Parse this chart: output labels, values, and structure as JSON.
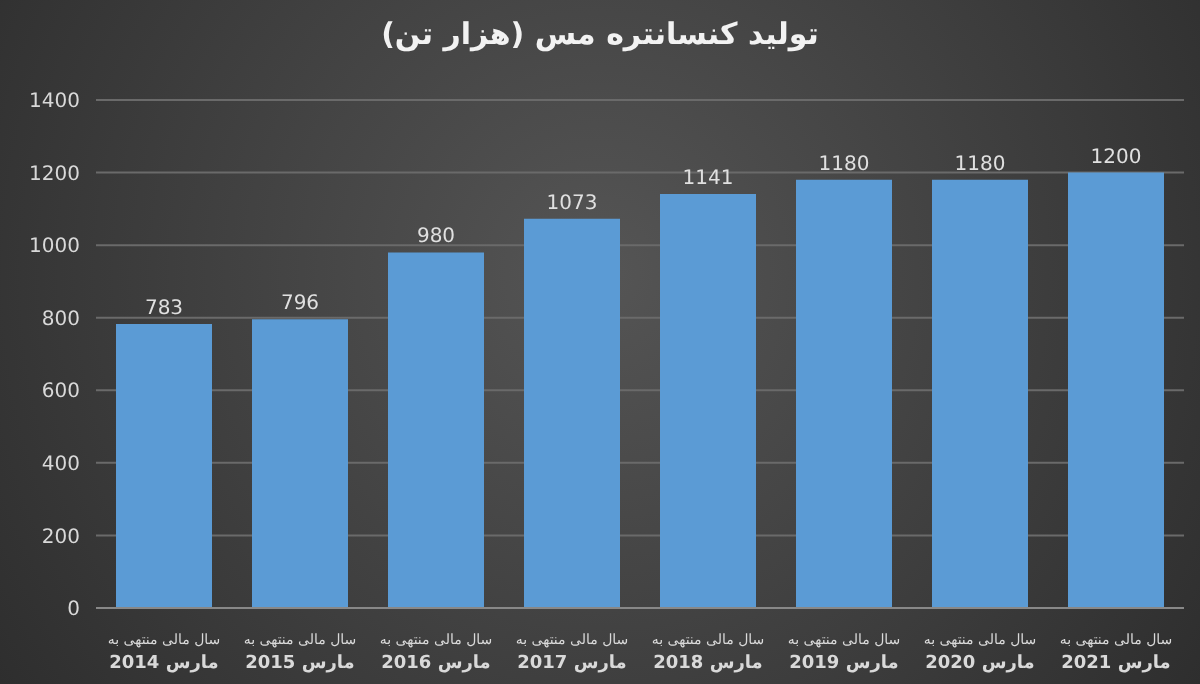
{
  "chart_data": {
    "type": "bar",
    "title": "تولید کنسانتره مس (هزار تن)",
    "categories": [
      "سال مالی منتهی به مارس 2014",
      "سال مالی منتهی به مارس 2015",
      "سال مالی منتهی به مارس 2016",
      "سال مالی منتهی به مارس 2017",
      "سال مالی منتهی به مارس 2018",
      "سال مالی منتهی به مارس 2019",
      "سال مالی منتهی به مارس 2020",
      "سال مالی منتهی به مارس 2021"
    ],
    "values": [
      783,
      796,
      980,
      1073,
      1141,
      1180,
      1180,
      1200
    ],
    "color": "#5b9bd5",
    "ylim": [
      0,
      1400
    ],
    "yticks": [
      0,
      200,
      400,
      600,
      800,
      1000,
      1200,
      1400
    ],
    "grid": "y",
    "data_labels": true
  }
}
